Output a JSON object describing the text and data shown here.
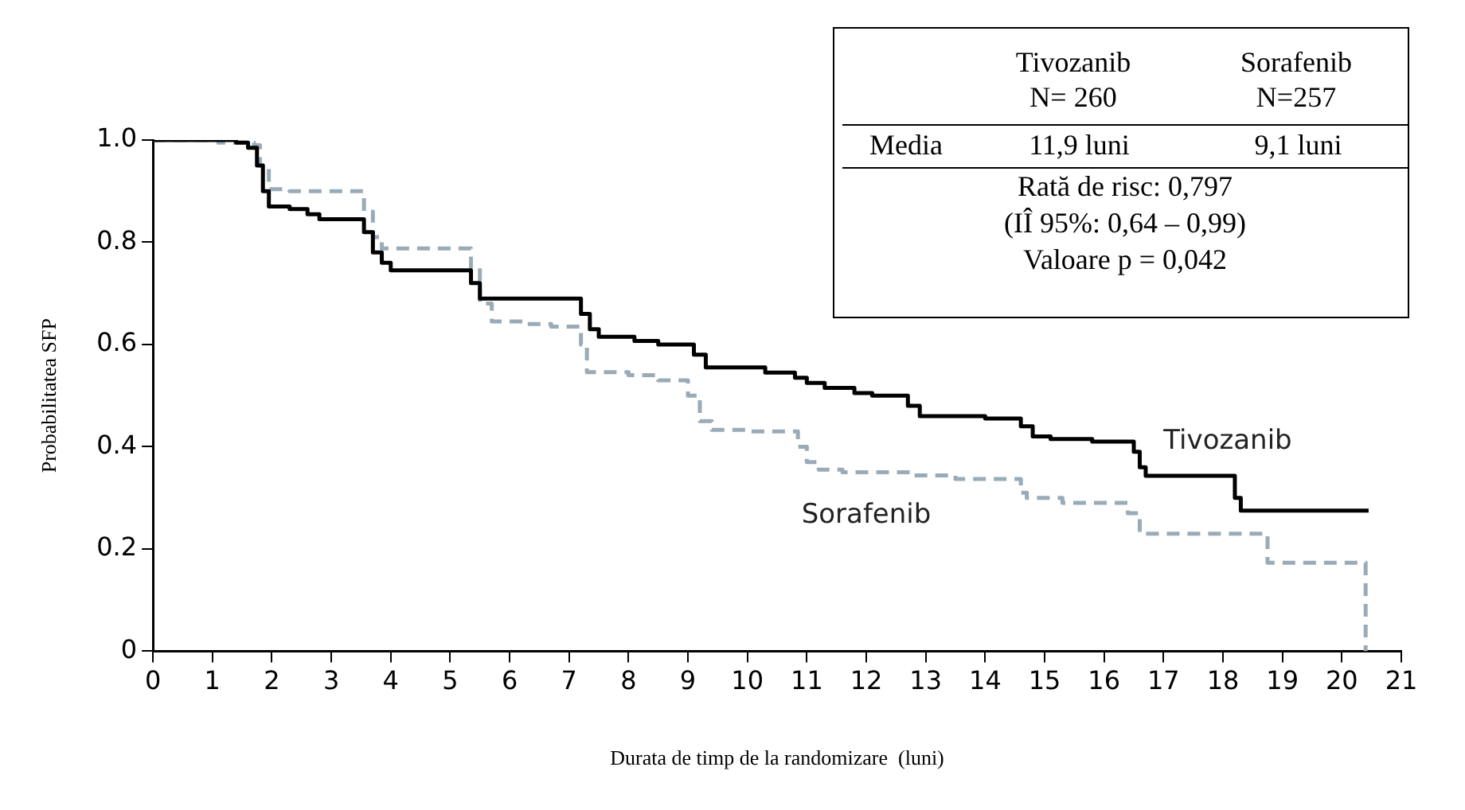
{
  "chart_data": {
    "type": "step",
    "xlabel": "Durata de timp de la randomizare  (luni)",
    "ylabel": "Probabilitatea SFP",
    "xlim": [
      0,
      21
    ],
    "xticks": [
      0,
      1,
      2,
      3,
      4,
      5,
      6,
      7,
      8,
      9,
      10,
      11,
      12,
      13,
      14,
      15,
      16,
      17,
      18,
      19,
      20,
      21
    ],
    "ylim": [
      0,
      1
    ],
    "yticks": [
      0,
      {
        "value": 0.2,
        "label": "0.2"
      },
      {
        "value": 0.4,
        "label": "0.4"
      },
      {
        "value": 0.6,
        "label": "0.6"
      },
      {
        "value": 0.8,
        "label": "0.8"
      },
      {
        "value": 1,
        "label": "1.0"
      }
    ],
    "grid": false,
    "legend": false,
    "series": [
      {
        "name": "Tivozanib",
        "color": "#000000",
        "line_style": "solid",
        "x": [
          0,
          1.4,
          1.6,
          1.75,
          1.85,
          1.95,
          2.3,
          2.6,
          2.8,
          3.55,
          3.7,
          3.85,
          4.0,
          5.35,
          5.5,
          7.2,
          7.35,
          7.5,
          8.1,
          8.5,
          9.1,
          9.3,
          10.3,
          10.8,
          11.0,
          11.3,
          11.8,
          12.1,
          12.7,
          12.9,
          14.0,
          14.6,
          14.8,
          15.1,
          15.8,
          16.5,
          16.6,
          16.7,
          18.2,
          18.3,
          20.45
        ],
        "values": [
          1.0,
          0.995,
          0.985,
          0.95,
          0.9,
          0.87,
          0.865,
          0.855,
          0.845,
          0.82,
          0.78,
          0.76,
          0.745,
          0.72,
          0.69,
          0.66,
          0.63,
          0.615,
          0.607,
          0.6,
          0.58,
          0.555,
          0.545,
          0.535,
          0.525,
          0.515,
          0.505,
          0.5,
          0.48,
          0.46,
          0.455,
          0.44,
          0.42,
          0.415,
          0.41,
          0.39,
          0.36,
          0.343,
          0.3,
          0.275,
          0.275
        ]
      },
      {
        "name": "Sorafenib",
        "color": "#9aabb8",
        "line_style": "dashed",
        "x": [
          0,
          1.1,
          1.7,
          1.8,
          1.95,
          2.3,
          3.55,
          3.7,
          3.85,
          5.35,
          5.5,
          5.7,
          6.3,
          6.7,
          7.2,
          7.3,
          8.0,
          8.5,
          9.0,
          9.2,
          9.4,
          10.0,
          10.85,
          11.0,
          11.2,
          11.6,
          12.8,
          13.5,
          14.6,
          14.7,
          15.3,
          16.4,
          16.6,
          18.75,
          20.4
        ],
        "values": [
          1.0,
          0.995,
          0.99,
          0.95,
          0.904,
          0.9,
          0.86,
          0.81,
          0.788,
          0.75,
          0.68,
          0.645,
          0.64,
          0.635,
          0.6,
          0.546,
          0.54,
          0.53,
          0.5,
          0.45,
          0.433,
          0.43,
          0.4,
          0.37,
          0.355,
          0.35,
          0.344,
          0.337,
          0.31,
          0.3,
          0.29,
          0.27,
          0.23,
          0.173,
          0
        ]
      }
    ],
    "annotations": [
      "Tivozanib",
      "N= 260",
      "Sorafenib",
      "N=257",
      "Media",
      "11,9 luni",
      "9,1 luni",
      "Rată de risc: 0,797",
      "(IÎ 95%: 0,64 – 0,99)",
      "Valoare p = 0,042"
    ]
  }
}
